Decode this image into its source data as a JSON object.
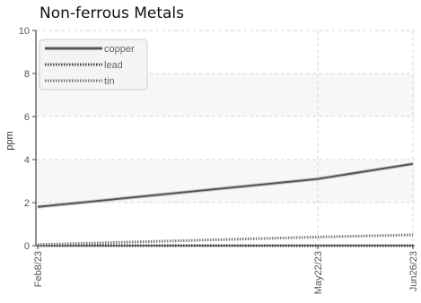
{
  "chart_data": {
    "type": "line",
    "title": "Non-ferrous Metals",
    "xlabel": "",
    "ylabel": "ppm",
    "x": [
      "Feb8/23",
      "May22/23",
      "Jun26/23"
    ],
    "ylim": [
      0,
      10
    ],
    "yticks": [
      "0",
      "2",
      "4",
      "6",
      "8",
      "10"
    ],
    "grid": true,
    "legend_position": "top-left",
    "series": [
      {
        "name": "copper",
        "values": [
          1.8,
          3.1,
          3.8
        ],
        "color": "#555555",
        "style": "solid"
      },
      {
        "name": "lead",
        "values": [
          0.0,
          0.0,
          0.0
        ],
        "color": "#444444",
        "style": "dotted"
      },
      {
        "name": "tin",
        "values": [
          0.05,
          0.4,
          0.5
        ],
        "color": "#777777",
        "style": "dotted"
      }
    ]
  }
}
